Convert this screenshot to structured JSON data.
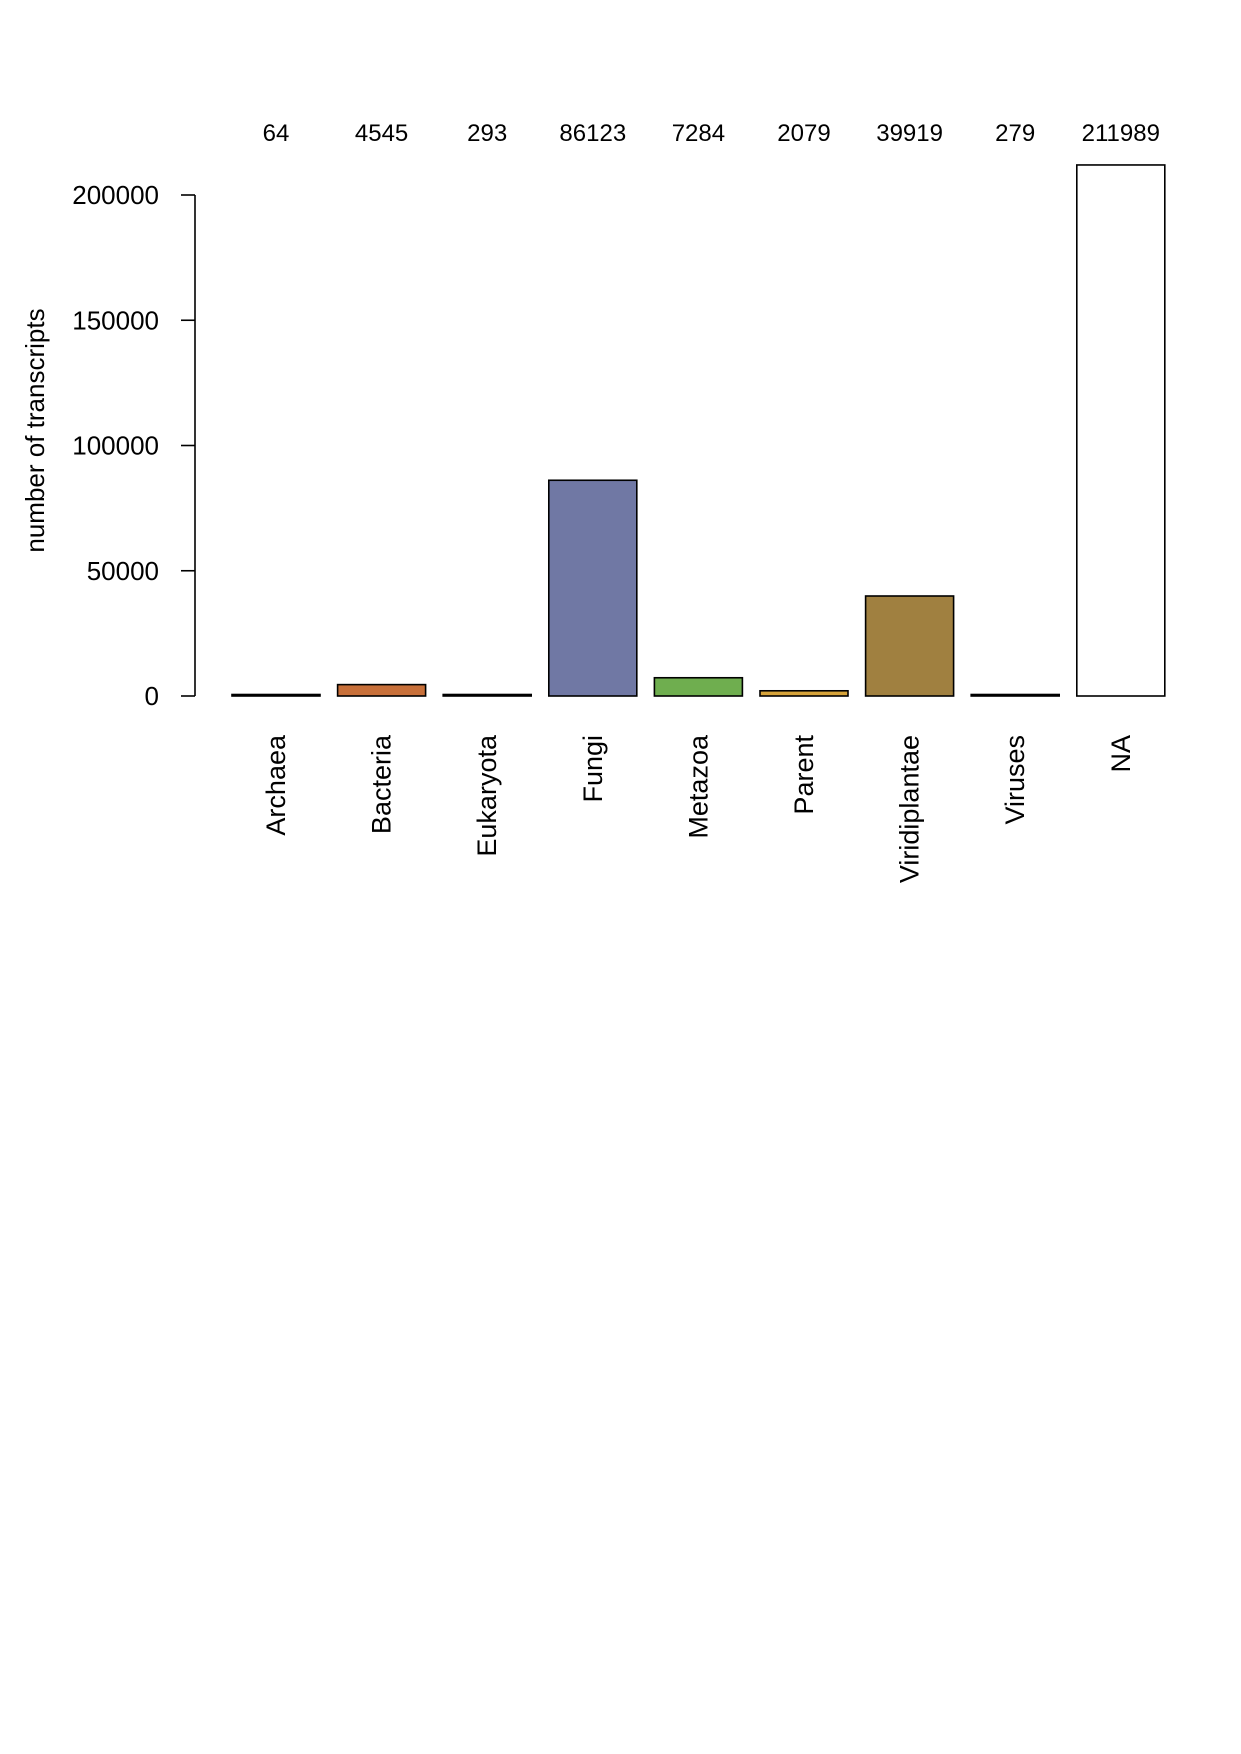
{
  "chart_data": {
    "type": "bar",
    "categories": [
      "Archaea",
      "Bacteria",
      "Eukaryota",
      "Fungi",
      "Metazoa",
      "Parent",
      "Viridiplantae",
      "Viruses",
      "NA"
    ],
    "values": [
      64,
      4545,
      293,
      86123,
      7284,
      2079,
      39919,
      279,
      211989
    ],
    "value_labels": [
      "64",
      "4545",
      "293",
      "86123",
      "7284",
      "2079",
      "39919",
      "279",
      "211989"
    ],
    "colors": [
      "#d9a87a",
      "#c8703a",
      "#8aa0c0",
      "#7078a4",
      "#6fae4f",
      "#d6a33a",
      "#a08040",
      "#9aa0a8",
      "#ffffff"
    ],
    "ylabel": "number of transcripts",
    "xlabel": "",
    "title": "",
    "yticks": [
      0,
      50000,
      100000,
      150000,
      200000
    ],
    "ytick_labels": [
      "0",
      "50000",
      "100000",
      "150000",
      "200000"
    ],
    "ylim": [
      0,
      200000
    ],
    "grid": false,
    "legend": "none"
  }
}
